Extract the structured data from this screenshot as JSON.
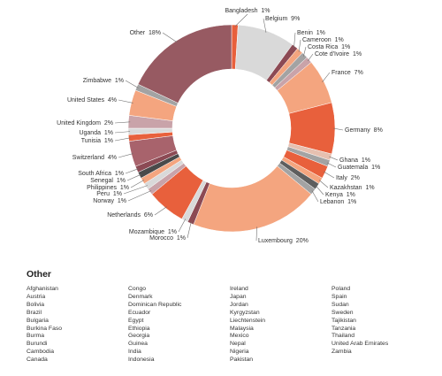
{
  "chart_data": {
    "type": "pie",
    "series_name": "",
    "slices": [
      {
        "label": "Bangladesh",
        "value": 1,
        "display": "Bangladesh  1%",
        "color": "#e8603c"
      },
      {
        "label": "Belgium",
        "value": 9,
        "display": "Belgium  9%",
        "color": "#d9d9d9"
      },
      {
        "label": "Benin",
        "value": 1,
        "display": "Benin  1%",
        "color": "#8c4a54"
      },
      {
        "label": "Cameroon",
        "value": 1,
        "display": "Cameroon  1%",
        "color": "#f4a57f"
      },
      {
        "label": "Costa Rica",
        "value": 1,
        "display": "Costa Rica  1%",
        "color": "#a3a3a3"
      },
      {
        "label": "Cote d'Ivoire",
        "value": 1,
        "display": "Cote d'Ivoire  1%",
        "color": "#c9a3a9"
      },
      {
        "label": "France",
        "value": 7,
        "display": "France  7%",
        "color": "#f4a57f"
      },
      {
        "label": "Germany",
        "value": 8,
        "display": "Germany  8%",
        "color": "#e8603c"
      },
      {
        "label": "Ghana",
        "value": 1,
        "display": "Ghana  1%",
        "color": "#e6c0b0"
      },
      {
        "label": "Guatemala",
        "value": 1,
        "display": "Guatemala  1%",
        "color": "#a3a3a3"
      },
      {
        "label": "Italy",
        "value": 2,
        "display": "Italy  2%",
        "color": "#e8603c"
      },
      {
        "label": "Kazakhstan",
        "value": 1,
        "display": "Kazakhstan  1%",
        "color": "#f4a57f"
      },
      {
        "label": "Kenya",
        "value": 1,
        "display": "Kenya  1%",
        "color": "#5e5e5e"
      },
      {
        "label": "Lebanon",
        "value": 1,
        "display": "Lebanon  1%",
        "color": "#a3a3a3"
      },
      {
        "label": "Luxembourg",
        "value": 20,
        "display": "Luxembourg  20%",
        "color": "#f4a57f"
      },
      {
        "label": "Morocco",
        "value": 1,
        "display": "Morocco  1%",
        "color": "#8c4a54"
      },
      {
        "label": "Mozambique",
        "value": 1,
        "display": "Mozambique  1%",
        "color": "#d9d9d9"
      },
      {
        "label": "Netherlands",
        "value": 6,
        "display": "Netherlands  6%",
        "color": "#e8603c"
      },
      {
        "label": "Norway",
        "value": 1,
        "display": "Norway  1%",
        "color": "#c9a3a9"
      },
      {
        "label": "Peru",
        "value": 1,
        "display": "Peru  1%",
        "color": "#d9d9d9"
      },
      {
        "label": "Philippines",
        "value": 1,
        "display": "Philippines  1%",
        "color": "#f4a57f"
      },
      {
        "label": "Senegal",
        "value": 1,
        "display": "Senegal  1%",
        "color": "#4a4a4a"
      },
      {
        "label": "South Africa",
        "value": 1,
        "display": "South Africa  1%",
        "color": "#8c4a54"
      },
      {
        "label": "Switzerland",
        "value": 4,
        "display": "Switzerland  4%",
        "color": "#a8636c"
      },
      {
        "label": "Tunisia",
        "value": 1,
        "display": "Tunisia  1%",
        "color": "#e8603c"
      },
      {
        "label": "Uganda",
        "value": 1,
        "display": "Uganda  1%",
        "color": "#d9d9d9"
      },
      {
        "label": "United Kingdom",
        "value": 2,
        "display": "United Kingdom  2%",
        "color": "#c9a3a9"
      },
      {
        "label": "United States",
        "value": 4,
        "display": "United States  4%",
        "color": "#f4a57f"
      },
      {
        "label": "Zimbabwe",
        "value": 1,
        "display": "Zimbabwe  1%",
        "color": "#a3a3a3"
      },
      {
        "label": "Other",
        "value": 18,
        "display": "Other  18%",
        "color": "#975a62"
      }
    ]
  },
  "other_section": {
    "heading": "Other",
    "columns": [
      [
        "Afghanistan",
        "Austria",
        "Bolivia",
        "Brazil",
        "Bulgaria",
        "Burkina Faso",
        "Burma",
        "Burundi",
        "Cambodia",
        "Canada"
      ],
      [
        "Congo",
        "Denmark",
        "Dominican Republic",
        "Ecuador",
        "Egypt",
        "Ethiopia",
        "Georgia",
        "Guinea",
        "India",
        "Indonesia"
      ],
      [
        "Ireland",
        "Japan",
        "Jordan",
        "Kyrgyzstan",
        "Liechtenstein",
        "Malaysia",
        "Mexico",
        "Nepal",
        "Nigeria",
        "Pakistan"
      ],
      [
        "Poland",
        "Spain",
        "Sudan",
        "Sweden",
        "Tajikistan",
        "Tanzania",
        "Thailand",
        "United Arab Emirates",
        "Zambia"
      ]
    ]
  }
}
